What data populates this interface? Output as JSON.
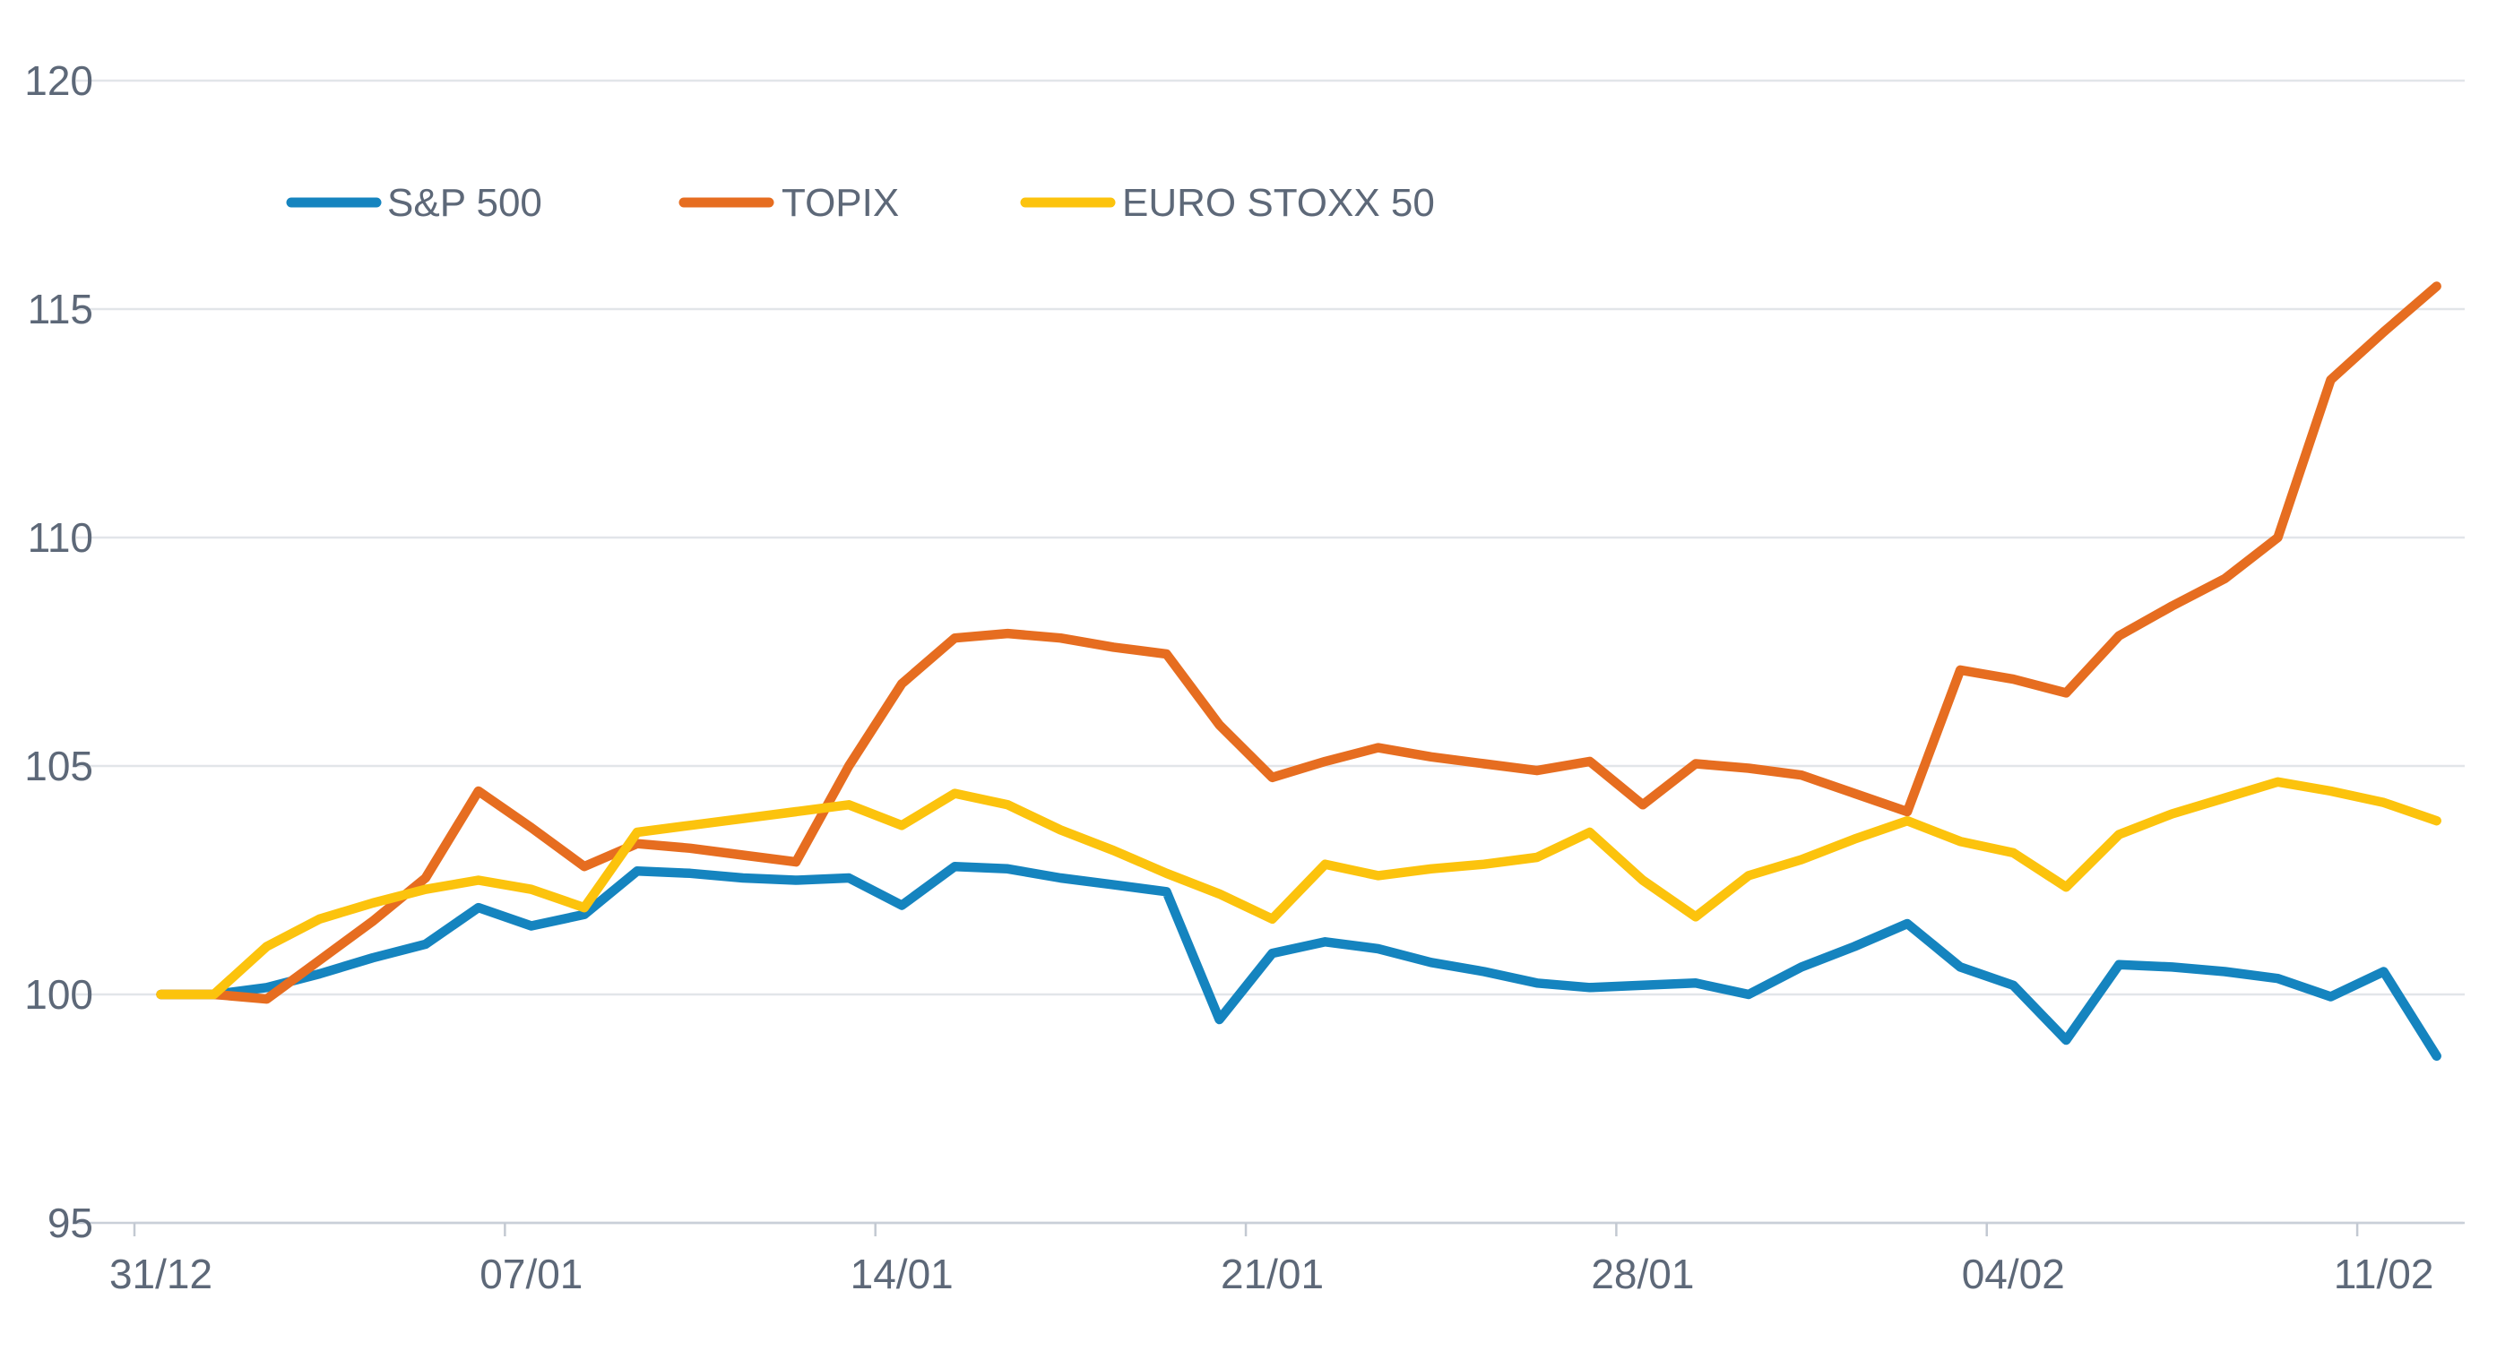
{
  "chart_data": {
    "type": "line",
    "title": "",
    "categories": [
      "31/12",
      "01/01",
      "02/01",
      "03/01",
      "04/01",
      "05/01",
      "06/01",
      "07/01",
      "08/01",
      "09/01",
      "10/01",
      "11/01",
      "12/01",
      "13/01",
      "14/01",
      "15/01",
      "16/01",
      "17/01",
      "18/01",
      "19/01",
      "20/01",
      "21/01",
      "22/01",
      "23/01",
      "24/01",
      "25/01",
      "26/01",
      "27/01",
      "28/01",
      "29/01",
      "30/01",
      "31/01",
      "01/02",
      "02/02",
      "03/02",
      "04/02",
      "05/02",
      "06/02",
      "07/02",
      "08/02",
      "09/02",
      "10/02",
      "11/02",
      "12/02"
    ],
    "series": [
      {
        "name": "S&P 500",
        "color": "#1584bf",
        "values": [
          100,
          100,
          100.15,
          100.45,
          100.8,
          101.1,
          101.9,
          101.5,
          101.75,
          102.7,
          102.65,
          102.55,
          102.5,
          102.55,
          101.95,
          102.8,
          102.75,
          102.55,
          102.4,
          102.25,
          99.45,
          100.9,
          101.15,
          101.0,
          100.7,
          100.5,
          100.25,
          100.15,
          100.2,
          100.25,
          100.0,
          100.6,
          101.05,
          101.55,
          100.6,
          100.2,
          99.0,
          100.65,
          100.6,
          100.5,
          100.35,
          99.95,
          100.5,
          98.65
        ]
      },
      {
        "name": "TOPIX",
        "color": "#e66d20",
        "values": [
          100,
          100,
          99.9,
          100.75,
          101.6,
          102.55,
          104.45,
          103.65,
          102.8,
          103.3,
          103.2,
          103.05,
          102.9,
          105.0,
          106.8,
          107.8,
          107.9,
          107.8,
          107.6,
          107.45,
          105.9,
          104.75,
          105.1,
          105.4,
          105.2,
          105.05,
          104.9,
          105.1,
          104.15,
          105.05,
          104.95,
          104.8,
          104.4,
          104.0,
          107.1,
          106.9,
          106.6,
          107.85,
          108.5,
          109.1,
          110.0,
          113.45,
          114.5,
          115.5
        ]
      },
      {
        "name": "EURO STOXX 50",
        "color": "#fcc30d",
        "values": [
          100,
          100,
          101.05,
          101.65,
          102.0,
          102.3,
          102.5,
          102.3,
          101.9,
          103.55,
          103.7,
          103.85,
          104.0,
          104.15,
          103.7,
          104.4,
          104.15,
          103.6,
          103.15,
          102.65,
          102.2,
          101.65,
          102.85,
          102.6,
          102.75,
          102.85,
          103.0,
          103.55,
          102.5,
          101.7,
          102.6,
          102.95,
          103.4,
          103.8,
          103.35,
          103.1,
          102.35,
          103.5,
          103.95,
          104.3,
          104.65,
          104.45,
          104.2,
          103.8
        ]
      }
    ],
    "ylabel": "",
    "xlabel": "",
    "ylim": [
      95,
      120
    ],
    "y_ticks": [
      95,
      100,
      105,
      110,
      115,
      120
    ],
    "x_tick_labels": [
      "31/12",
      "07/01",
      "14/01",
      "21/01",
      "28/01",
      "04/02",
      "11/02"
    ],
    "x_label_interval": 7,
    "grid": "horizontal",
    "legend_position": "top",
    "grid_color": "#e2e5e9",
    "axis_color": "#c9cfd8",
    "tick_color": "#c3c9d2",
    "text_color": "#5d6878",
    "background": "#ffffff"
  }
}
